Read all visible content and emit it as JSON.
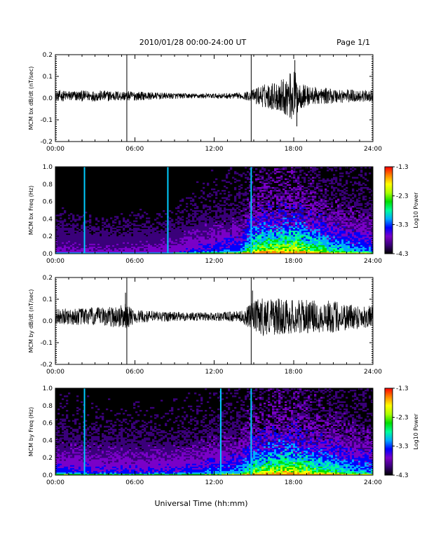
{
  "header": {
    "title": "2010/01/28   00:00-24:00 UT",
    "page": "Page 1/1"
  },
  "footer": {
    "xlabel": "Universal Time (hh:mm)"
  },
  "colors": {
    "trace": "#000000",
    "background_spec": "#000000",
    "colorbar_stops": [
      "#000000",
      "#3a007a",
      "#7a00c8",
      "#0000ff",
      "#00aaff",
      "#00ff99",
      "#00dd00",
      "#aaff00",
      "#ffff00",
      "#ff8800",
      "#ff0000"
    ]
  },
  "chart_data": [
    {
      "type": "line",
      "id": "bx_ts",
      "ylabel": "MCM bx dB/dt (nT/sec)",
      "ylim": [
        -0.2,
        0.2
      ],
      "yticks": [
        "0.2",
        "0.1",
        "0.0",
        "-0.1",
        "-0.2"
      ],
      "xticks": [
        "00:00",
        "06:00",
        "12:00",
        "18:00",
        "24:00"
      ],
      "xlim_hours": [
        0,
        24
      ],
      "vertical_lines_hours": [
        5.4,
        14.8
      ],
      "envelope_hours": [
        0,
        2,
        4,
        6,
        8,
        10,
        12,
        14,
        14.8,
        15.5,
        16.5,
        17.5,
        18.0,
        18.5,
        19.5,
        21,
        22.5,
        24
      ],
      "envelope_amplitude": [
        0.025,
        0.025,
        0.025,
        0.022,
        0.015,
        0.012,
        0.012,
        0.014,
        0.025,
        0.05,
        0.065,
        0.09,
        0.13,
        0.06,
        0.04,
        0.035,
        0.03,
        0.025
      ],
      "baseline": 0.01,
      "spikes_hours": [
        18.1,
        18.25
      ],
      "spikes_values": [
        0.175,
        -0.13
      ]
    },
    {
      "type": "heatmap",
      "id": "bx_spec",
      "ylabel": "MCM bx Freq (Hz)",
      "ylim": [
        0.0,
        1.0
      ],
      "yticks": [
        "1.0",
        "0.8",
        "0.6",
        "0.4",
        "0.2",
        "0.0"
      ],
      "xticks": [
        "00:00",
        "06:00",
        "12:00",
        "18:00",
        "24:00"
      ],
      "xlim_hours": [
        0,
        24
      ],
      "colorbar": {
        "label": "Log10 Power",
        "ticks": [
          "-1.3",
          "-2.3",
          "-3.3",
          "-4.3"
        ],
        "range": [
          -4.3,
          -1.3
        ]
      },
      "vertical_lines_hours": [
        2.2,
        8.5,
        14.8
      ],
      "activity_profile_hours": [
        0,
        4,
        8,
        11,
        14,
        15,
        16.5,
        18,
        19.5,
        21,
        22.5,
        24
      ],
      "activity_level": [
        0.2,
        0.18,
        0.2,
        0.3,
        0.4,
        0.75,
        0.8,
        0.85,
        0.7,
        0.55,
        0.45,
        0.4
      ]
    },
    {
      "type": "line",
      "id": "by_ts",
      "ylabel": "MCM by dB/dt (nT/sec)",
      "ylim": [
        -0.2,
        0.2
      ],
      "yticks": [
        "0.2",
        "0.1",
        "0.0",
        "-0.1",
        "-0.2"
      ],
      "xticks": [
        "00:00",
        "06:00",
        "12:00",
        "18:00",
        "24:00"
      ],
      "xlim_hours": [
        0,
        24
      ],
      "vertical_lines_hours": [
        5.4,
        14.8
      ],
      "envelope_hours": [
        0,
        2,
        4,
        5.3,
        6,
        8,
        10,
        12,
        14,
        14.8,
        15.5,
        16.5,
        18,
        19.5,
        21,
        22.5,
        24
      ],
      "envelope_amplitude": [
        0.035,
        0.04,
        0.045,
        0.06,
        0.03,
        0.025,
        0.02,
        0.02,
        0.025,
        0.06,
        0.09,
        0.085,
        0.08,
        0.075,
        0.075,
        0.06,
        0.05
      ],
      "baseline": 0.02,
      "spikes_hours": [
        5.3,
        14.9
      ],
      "spikes_values": [
        0.13,
        0.14
      ]
    },
    {
      "type": "heatmap",
      "id": "by_spec",
      "ylabel": "MCM by Freq (Hz)",
      "ylim": [
        0.0,
        1.0
      ],
      "yticks": [
        "1.0",
        "0.8",
        "0.6",
        "0.4",
        "0.2",
        "0.0"
      ],
      "xticks": [
        "00:00",
        "06:00",
        "12:00",
        "18:00",
        "24:00"
      ],
      "xlim_hours": [
        0,
        24
      ],
      "colorbar": {
        "label": "Log10 Power",
        "ticks": [
          "-1.3",
          "-2.3",
          "-3.3",
          "-4.3"
        ],
        "range": [
          -4.3,
          -1.3
        ]
      },
      "vertical_lines_hours": [
        2.2,
        12.5,
        14.8
      ],
      "activity_profile_hours": [
        0,
        4,
        8,
        11,
        14,
        15,
        16.5,
        18,
        19.5,
        21,
        22.5,
        24
      ],
      "activity_level": [
        0.35,
        0.3,
        0.3,
        0.35,
        0.45,
        0.7,
        0.8,
        0.85,
        0.7,
        0.6,
        0.5,
        0.45
      ]
    }
  ]
}
